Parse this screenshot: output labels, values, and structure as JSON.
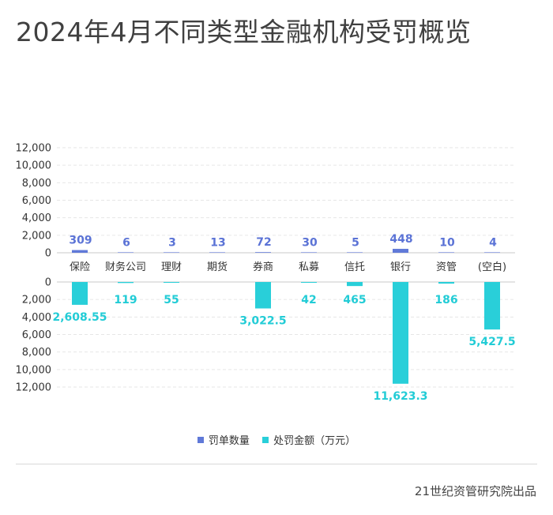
{
  "title": "2024年4月不同类型金融机构受罚概览",
  "source": "21世纪资管研究院出品",
  "colors": {
    "count": "#6079d8",
    "amount": "#29cfd9",
    "count_label": "#5b73d6",
    "amount_label": "#22ccd6"
  },
  "chart_data": {
    "type": "bar",
    "categories": [
      "保险",
      "财务公司",
      "理财",
      "期货",
      "券商",
      "私募",
      "信托",
      "银行",
      "资管",
      "(空白)"
    ],
    "series": [
      {
        "name": "罚单数量",
        "values": [
          309,
          6,
          3,
          13,
          72,
          30,
          5,
          448,
          10,
          4
        ],
        "labels": [
          "309",
          "6",
          "3",
          "13",
          "72",
          "30",
          "5",
          "448",
          "10",
          "4"
        ]
      },
      {
        "name": "处罚金额（万元）",
        "values": [
          2608.55,
          119,
          55,
          null,
          3022.5,
          42,
          465,
          11623.3,
          186,
          5427.5
        ],
        "labels": [
          "2,608.55",
          "119",
          "55",
          "",
          "3,022.5",
          "42",
          "465",
          "11,623.3",
          "186",
          "5,427.5"
        ]
      }
    ],
    "upper_axis": {
      "ylim": [
        0,
        12000
      ],
      "ticks": [
        "12,000",
        "10,000",
        "8,000",
        "6,000",
        "4,000",
        "2,000",
        "0"
      ]
    },
    "lower_axis": {
      "ylim": [
        0,
        12000
      ],
      "inverted": true,
      "ticks": [
        "0",
        "2,000",
        "4,000",
        "6,000",
        "8,000",
        "10,000",
        "12,000"
      ]
    },
    "grid": true,
    "legend_position": "bottom-center"
  }
}
